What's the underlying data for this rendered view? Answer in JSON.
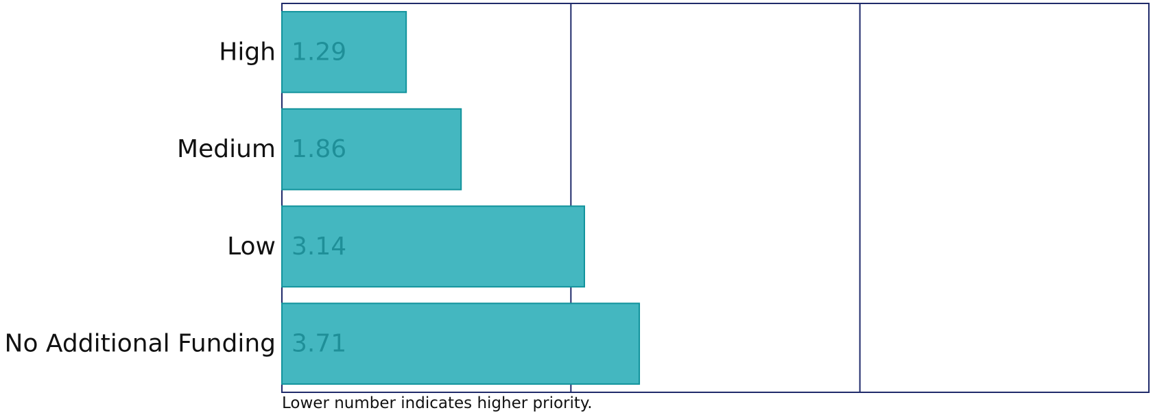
{
  "chart_data": {
    "type": "bar",
    "orientation": "horizontal",
    "categories": [
      "High",
      "Medium",
      "Low",
      "No Additional Funding"
    ],
    "values": [
      1.29,
      1.86,
      3.14,
      3.71
    ],
    "value_labels": [
      "1.29",
      "1.86",
      "3.14",
      "3.71"
    ],
    "xlim": [
      0,
      9
    ],
    "xticks": [
      0,
      3,
      6,
      9
    ],
    "grid": "vertical",
    "show_x_tick_labels": false,
    "note": "Lower number indicates higher priority.",
    "title": "",
    "xlabel": "",
    "ylabel": ""
  },
  "colors": {
    "bar_fill": "#44b7c0",
    "bar_stroke": "#12939c",
    "label_color": "#1f8f98",
    "axis_color": "#1f2a6a",
    "text_color": "#111111"
  }
}
